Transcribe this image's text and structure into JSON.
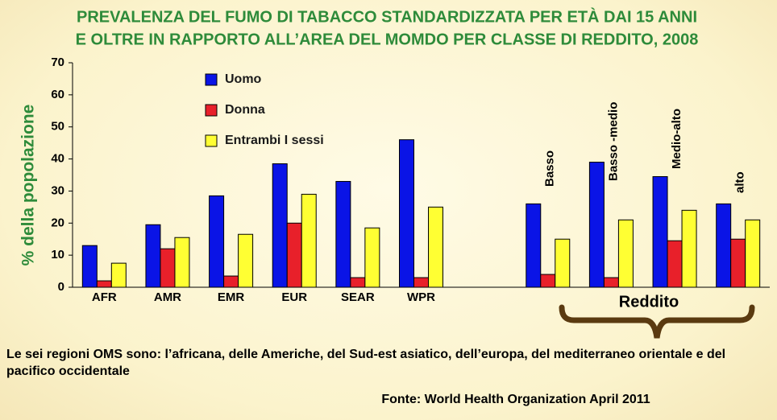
{
  "chart_data": {
    "type": "bar",
    "title": [
      "PREVALENZA DEL FUMO DI TABACCO STANDARDIZZATA PER ETÀ DAI 15 ANNI",
      "E OLTRE IN RAPPORTO ALL’AREA DEL MOMDO PER CLASSE DI REDDITO, 2008"
    ],
    "y_label": "% della popolazione",
    "categories": [
      "AFR",
      "AMR",
      "EMR",
      "EUR",
      "SEAR",
      "WPR",
      null,
      "Basso",
      "Basso -medio",
      "Medio-alto",
      "alto"
    ],
    "series": [
      {
        "name": "Uomo",
        "color": "#0a14e6",
        "values": [
          13,
          19.5,
          28.5,
          38.5,
          33,
          46,
          null,
          26,
          39,
          34.5,
          26
        ]
      },
      {
        "name": "Donna",
        "color": "#e8202a",
        "values": [
          2,
          12,
          3.5,
          20,
          3,
          3,
          null,
          4,
          3,
          14.5,
          15
        ]
      },
      {
        "name": "Entrambi I sessi",
        "color": "#ffff33",
        "values": [
          7.5,
          15.5,
          16.5,
          29,
          18.5,
          25,
          null,
          15,
          21,
          24,
          21
        ]
      }
    ],
    "ylim": [
      0,
      70
    ],
    "yticks": [
      0,
      10,
      20,
      30,
      40,
      50,
      60,
      70
    ],
    "grid": false,
    "legend": "top-left",
    "group_label": "Reddito",
    "note": "Le sei regioni OMS sono: l’africana, delle Americhe, del Sud-est asiatico, dell’europa, del mediterraneo orientale e del pacifico occidentale",
    "source": "Fonte: World Health Organization April 2011"
  }
}
